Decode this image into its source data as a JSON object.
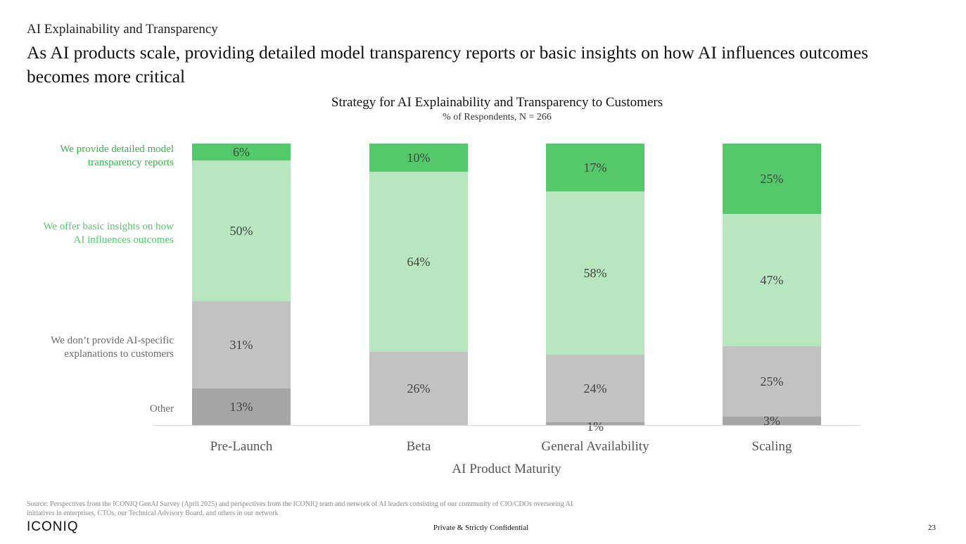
{
  "header": {
    "eyebrow": "AI Explainability and Transparency",
    "headline": "As AI products scale, providing detailed model transparency reports or basic insights on how AI influences outcomes becomes more critical"
  },
  "chart_data": {
    "type": "bar",
    "stacked": true,
    "title": "Strategy for AI Explainability and Transparency to Customers",
    "subtitle": "% of Respondents, N = 266",
    "xlabel": "AI Product Maturity",
    "ylabel": "",
    "ylim": [
      0,
      100
    ],
    "grid": false,
    "legend_placement": "left",
    "categories": [
      "Pre-Launch",
      "Beta",
      "General Availability",
      "Scaling"
    ],
    "series": [
      {
        "name": "Other",
        "legend_label": "Other",
        "color": "#a6a6a6",
        "values": [
          13,
          0,
          1,
          3
        ]
      },
      {
        "name": "We don't provide AI-specific explanations to customers",
        "legend_label": "We don’t provide AI-specific explanations to customers",
        "color": "#c2c2c2",
        "values": [
          31,
          26,
          24,
          25
        ]
      },
      {
        "name": "We offer basic insights on how AI influences outcomes",
        "legend_label": "We offer basic insights on how AI influences outcomes",
        "color": "#b8e6be",
        "values": [
          50,
          64,
          58,
          47
        ]
      },
      {
        "name": "We provide detailed model transparency reports",
        "legend_label": "We provide detailed model transparency reports",
        "color": "#55c86b",
        "values": [
          6,
          10,
          17,
          25
        ]
      }
    ],
    "legend_text_colors": [
      "#6a6a6a",
      "#6a6a6a",
      "#55c86b",
      "#3bb14e"
    ],
    "label_color": "#444444",
    "axis_color": "#d9d9d9"
  },
  "footer": {
    "source": "Source: Perspectives from the ICONIQ GenAI Survey (April 2025) and perspectives from the ICONIQ team and network of AI leaders consisting of our community of CIO/CDOs overseeing AI initiatives in enterprises, CTOs, our Technical Advisory Board, and others in our network",
    "logo": "ICONIQ",
    "confidential": "Private & Strictly Confidential",
    "page_number": "23"
  }
}
